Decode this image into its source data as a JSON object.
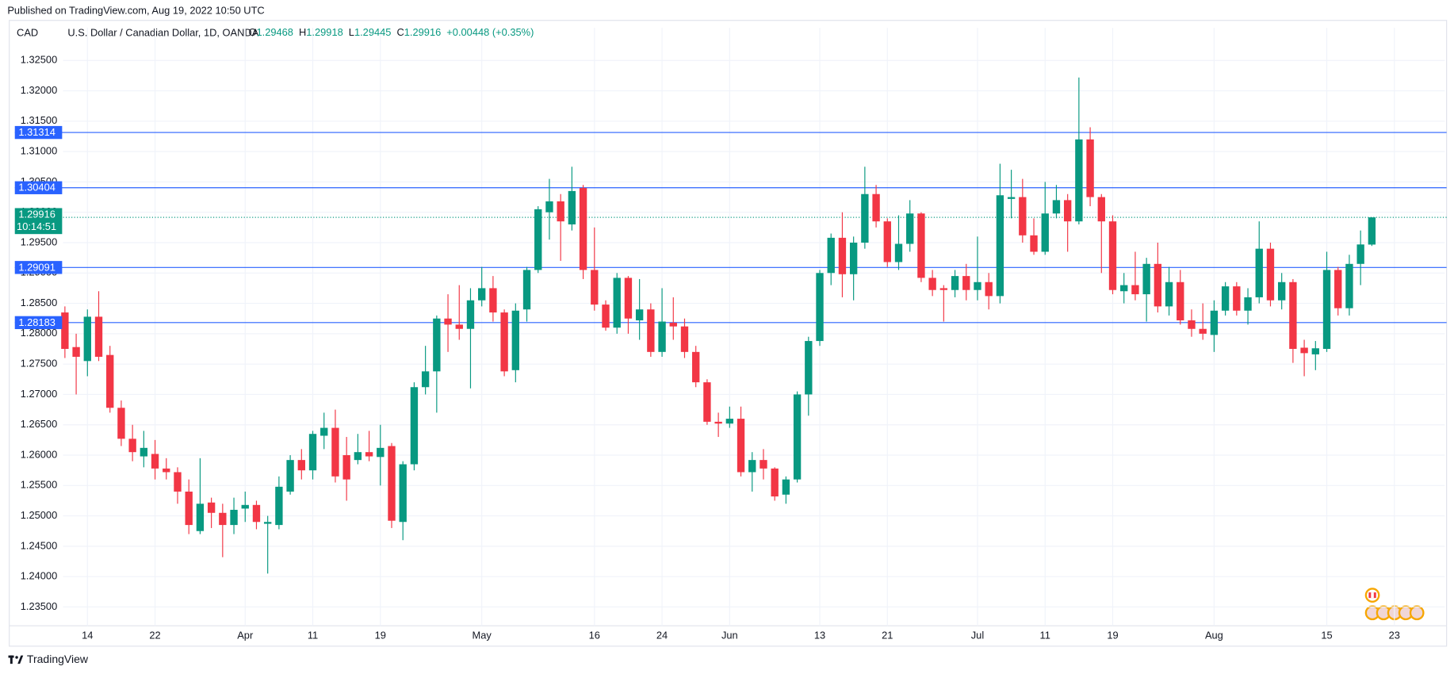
{
  "published": "Published on TradingView.com, Aug 19, 2022 10:50 UTC",
  "header": {
    "currency": "CAD",
    "symbol": "U.S. Dollar / Canadian Dollar, 1D, OANDA",
    "ohlc_prefixes": [
      "O",
      "H",
      "L",
      "C"
    ],
    "change": "+0.00448 (+0.35%)"
  },
  "countdown": "10:14:51",
  "footer": "TradingView",
  "chart_data": {
    "type": "candlestick",
    "up_color": "#089981",
    "down_color": "#f23645",
    "level_color": "#2962ff",
    "grid": true,
    "ylim": [
      1.2319,
      1.3316
    ],
    "yticks": [
      {
        "value": 1.325,
        "label": "1.32500"
      },
      {
        "value": 1.32,
        "label": "1.32000"
      },
      {
        "value": 1.315,
        "label": "1.31500"
      },
      {
        "value": 1.31,
        "label": "1.31000"
      },
      {
        "value": 1.305,
        "label": "1.30500"
      },
      {
        "value": 1.3,
        "label": "1.30000"
      },
      {
        "value": 1.295,
        "label": "1.29500"
      },
      {
        "value": 1.29,
        "label": "1.29000"
      },
      {
        "value": 1.285,
        "label": "1.28500"
      },
      {
        "value": 1.28,
        "label": "1.28000"
      },
      {
        "value": 1.275,
        "label": "1.27500"
      },
      {
        "value": 1.27,
        "label": "1.27000"
      },
      {
        "value": 1.265,
        "label": "1.26500"
      },
      {
        "value": 1.26,
        "label": "1.26000"
      },
      {
        "value": 1.255,
        "label": "1.25500"
      },
      {
        "value": 1.25,
        "label": "1.25000"
      },
      {
        "value": 1.245,
        "label": "1.24500"
      },
      {
        "value": 1.24,
        "label": "1.24000"
      },
      {
        "value": 1.235,
        "label": "1.23500"
      }
    ],
    "levels": [
      1.31314,
      1.30404,
      1.29091,
      1.28183
    ],
    "categories": [
      null,
      null,
      "14",
      null,
      null,
      null,
      null,
      null,
      "22",
      null,
      null,
      null,
      null,
      null,
      null,
      null,
      "Apr",
      null,
      null,
      null,
      null,
      null,
      "11",
      null,
      null,
      null,
      null,
      null,
      "19",
      null,
      null,
      null,
      null,
      null,
      null,
      null,
      null,
      "May",
      null,
      null,
      null,
      null,
      null,
      null,
      null,
      null,
      null,
      "16",
      null,
      null,
      null,
      null,
      null,
      "24",
      null,
      null,
      null,
      null,
      null,
      "Jun",
      null,
      null,
      null,
      null,
      null,
      null,
      null,
      "13",
      null,
      null,
      null,
      null,
      null,
      "21",
      null,
      null,
      null,
      null,
      null,
      null,
      null,
      "Jul",
      null,
      null,
      null,
      null,
      null,
      "11",
      null,
      null,
      null,
      null,
      null,
      "19",
      null,
      null,
      null,
      null,
      null,
      null,
      null,
      null,
      "Aug",
      null,
      null,
      null,
      null,
      null,
      null,
      null,
      null,
      null,
      "15",
      null,
      null,
      null,
      null,
      null,
      "23"
    ],
    "open": [
      1.2835,
      1.2778,
      1.2755,
      1.2828,
      1.2765,
      1.2678,
      1.2627,
      1.2598,
      1.2602,
      1.2578,
      1.2572,
      1.254,
      1.2475,
      1.2522,
      1.2505,
      1.2485,
      1.2512,
      1.2518,
      1.2487,
      1.2485,
      1.254,
      1.2592,
      1.2575,
      1.2632,
      1.2645,
      1.26,
      1.2592,
      1.2605,
      1.2597,
      1.2615,
      1.249,
      1.2585,
      1.2712,
      1.2738,
      1.2825,
      1.2815,
      1.2808,
      1.2855,
      1.2875,
      1.2835,
      1.274,
      1.284,
      1.2905,
      1.3,
      1.3018,
      1.298,
      1.304,
      1.2905,
      1.2848,
      1.281,
      1.2892,
      1.2822,
      1.284,
      1.277,
      1.2818,
      1.2812,
      1.277,
      1.272,
      1.2655,
      1.2652,
      1.266,
      1.2572,
      1.2592,
      1.2578,
      1.2535,
      1.256,
      1.27,
      1.2788,
      1.29,
      1.2958,
      1.2898,
      1.295,
      1.303,
      1.2985,
      1.2918,
      1.2948,
      1.2998,
      1.2892,
      1.2875,
      1.2872,
      1.2895,
      1.2872,
      1.2885,
      1.2862,
      1.3022,
      1.3025,
      1.2962,
      1.2935,
      1.2998,
      1.302,
      1.2985,
      1.312,
      1.3025,
      1.2985,
      1.287,
      1.288,
      1.2865,
      1.2915,
      1.2845,
      1.2885,
      1.2822,
      1.2808,
      1.2798,
      1.2838,
      1.2878,
      1.2838,
      1.286,
      1.294,
      1.2855,
      1.2885,
      1.2777,
      1.2766,
      1.2775,
      1.2905,
      1.2842,
      1.2915,
      1.29468,
      null,
      null
    ],
    "high": [
      1.2845,
      1.28,
      1.284,
      1.287,
      1.278,
      1.269,
      1.265,
      1.264,
      1.2625,
      1.2595,
      1.258,
      1.256,
      1.2595,
      1.253,
      1.252,
      1.253,
      1.254,
      1.2525,
      1.25,
      1.2565,
      1.26,
      1.261,
      1.264,
      1.267,
      1.2675,
      1.263,
      1.2635,
      1.264,
      1.265,
      1.262,
      1.259,
      1.272,
      1.278,
      1.283,
      1.2865,
      1.288,
      1.2875,
      1.291,
      1.2895,
      1.284,
      1.285,
      1.291,
      1.301,
      1.3055,
      1.303,
      1.3075,
      1.3045,
      1.2975,
      1.2855,
      1.29,
      1.2895,
      1.289,
      1.285,
      1.2875,
      1.286,
      1.2825,
      1.278,
      1.2725,
      1.267,
      1.268,
      1.268,
      1.2605,
      1.261,
      1.258,
      1.2565,
      1.2705,
      1.2795,
      1.2905,
      1.2965,
      1.3,
      1.296,
      1.3075,
      1.3045,
      1.299,
      1.2995,
      1.302,
      1.3,
      1.2905,
      1.288,
      1.2905,
      1.2915,
      1.296,
      1.29,
      1.308,
      1.307,
      1.3055,
      1.299,
      1.305,
      1.3045,
      1.303,
      1.3222,
      1.314,
      1.303,
      1.2995,
      1.29,
      1.2935,
      1.2925,
      1.295,
      1.291,
      1.2905,
      1.284,
      1.285,
      1.2855,
      1.2885,
      1.2885,
      1.2875,
      1.2985,
      1.295,
      1.29,
      1.289,
      1.279,
      1.2788,
      1.2935,
      1.291,
      1.293,
      1.297,
      1.29918,
      null,
      null
    ],
    "low": [
      1.276,
      1.27,
      1.273,
      1.2755,
      1.267,
      1.2615,
      1.259,
      1.258,
      1.256,
      1.256,
      1.252,
      1.247,
      1.247,
      1.248,
      1.2432,
      1.247,
      1.249,
      1.2478,
      1.2405,
      1.2478,
      1.2535,
      1.256,
      1.256,
      1.261,
      1.2555,
      1.2525,
      1.2585,
      1.259,
      1.255,
      1.248,
      1.246,
      1.2575,
      1.27,
      1.267,
      1.277,
      1.279,
      1.271,
      1.2845,
      1.282,
      1.273,
      1.272,
      1.282,
      1.29,
      1.2955,
      1.292,
      1.297,
      1.289,
      1.2838,
      1.2805,
      1.28,
      1.28,
      1.279,
      1.2762,
      1.2762,
      1.279,
      1.276,
      1.2712,
      1.265,
      1.263,
      1.2645,
      1.2565,
      1.254,
      1.256,
      1.2525,
      1.252,
      1.2555,
      1.2665,
      1.278,
      1.288,
      1.286,
      1.2855,
      1.294,
      1.2975,
      1.291,
      1.2905,
      1.2935,
      1.2885,
      1.2862,
      1.282,
      1.286,
      1.2855,
      1.2855,
      1.284,
      1.285,
      1.299,
      1.295,
      1.293,
      1.293,
      1.299,
      1.2935,
      1.298,
      1.301,
      1.29,
      1.2865,
      1.285,
      1.2855,
      1.282,
      1.2835,
      1.283,
      1.2815,
      1.2795,
      1.279,
      1.277,
      1.283,
      1.283,
      1.2815,
      1.285,
      1.2845,
      1.284,
      1.2752,
      1.273,
      1.274,
      1.277,
      1.283,
      1.283,
      1.288,
      1.29445,
      null,
      null
    ],
    "close": [
      1.2775,
      1.2762,
      1.2828,
      1.2762,
      1.2678,
      1.2627,
      1.2605,
      1.2612,
      1.2578,
      1.2572,
      1.254,
      1.2485,
      1.252,
      1.2505,
      1.2485,
      1.251,
      1.2518,
      1.249,
      1.249,
      1.2548,
      1.2592,
      1.2575,
      1.2635,
      1.2645,
      1.2565,
      1.256,
      1.2605,
      1.2598,
      1.2612,
      1.2492,
      1.2585,
      1.2712,
      1.2738,
      1.2825,
      1.2815,
      1.2808,
      1.2855,
      1.2875,
      1.2835,
      1.2738,
      1.2838,
      1.2905,
      1.3005,
      1.3018,
      1.2985,
      1.3035,
      1.2905,
      1.2848,
      1.281,
      1.2892,
      1.2825,
      1.284,
      1.277,
      1.282,
      1.2812,
      1.277,
      1.272,
      1.2655,
      1.2652,
      1.266,
      1.2572,
      1.2592,
      1.2578,
      1.2532,
      1.256,
      1.27,
      1.2788,
      1.29,
      1.2958,
      1.2898,
      1.295,
      1.303,
      1.2985,
      1.2918,
      1.2948,
      1.2998,
      1.2892,
      1.2872,
      1.2872,
      1.2895,
      1.2872,
      1.2885,
      1.2862,
      1.3028,
      1.3025,
      1.2962,
      1.2935,
      1.2998,
      1.302,
      1.2985,
      1.312,
      1.3025,
      1.2985,
      1.2872,
      1.288,
      1.2865,
      1.2915,
      1.2845,
      1.2885,
      1.2822,
      1.2808,
      1.28,
      1.2838,
      1.2878,
      1.2838,
      1.286,
      1.294,
      1.2855,
      1.2885,
      1.2775,
      1.2768,
      1.2776,
      1.2905,
      1.2842,
      1.2915,
      1.2947,
      1.29916,
      null,
      null
    ]
  }
}
